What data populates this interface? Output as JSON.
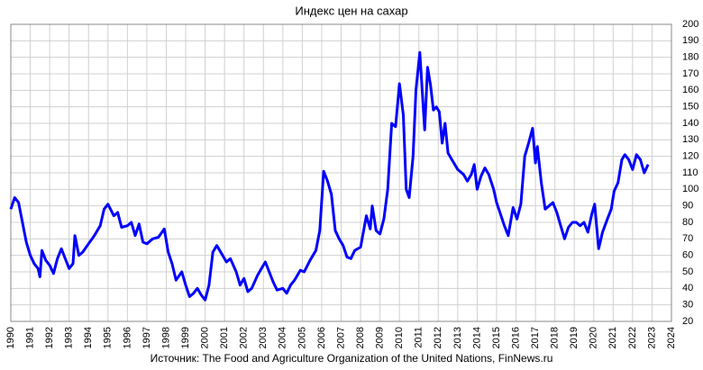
{
  "chart_data": {
    "type": "line",
    "title": "Индекс цен на сахар",
    "source": "Источник: The Food and Agriculture Organization of the United Nations, FinNews.ru",
    "xlim": [
      1990,
      2024
    ],
    "xticks": [
      1990,
      1991,
      1992,
      1993,
      1994,
      1995,
      1996,
      1997,
      1998,
      1999,
      2000,
      2001,
      2002,
      2003,
      2004,
      2005,
      2006,
      2007,
      2008,
      2009,
      2010,
      2011,
      2012,
      2013,
      2014,
      2015,
      2016,
      2017,
      2018,
      2019,
      2020,
      2021,
      2022,
      2023,
      2024
    ],
    "ylim": [
      20,
      200
    ],
    "yticks": [
      20,
      30,
      40,
      50,
      60,
      70,
      80,
      90,
      100,
      110,
      120,
      130,
      140,
      150,
      160,
      170,
      180,
      190,
      200
    ],
    "grid": true,
    "series": [
      {
        "color": "#0000ff",
        "x": [
          1990.0,
          1990.2,
          1990.4,
          1990.6,
          1990.8,
          1991.0,
          1991.2,
          1991.4,
          1991.5,
          1991.6,
          1991.8,
          1992.0,
          1992.2,
          1992.4,
          1992.6,
          1992.8,
          1993.0,
          1993.2,
          1993.3,
          1993.5,
          1993.7,
          1994.0,
          1994.3,
          1994.6,
          1994.8,
          1995.0,
          1995.3,
          1995.5,
          1995.7,
          1996.0,
          1996.2,
          1996.4,
          1996.6,
          1996.8,
          1997.0,
          1997.3,
          1997.6,
          1997.9,
          1998.1,
          1998.3,
          1998.5,
          1998.8,
          1999.0,
          1999.2,
          1999.4,
          1999.6,
          1999.8,
          2000.0,
          2000.2,
          2000.4,
          2000.6,
          2000.9,
          2001.1,
          2001.3,
          2001.6,
          2001.8,
          2002.0,
          2002.2,
          2002.4,
          2002.7,
          2002.9,
          2003.1,
          2003.3,
          2003.5,
          2003.7,
          2004.0,
          2004.2,
          2004.4,
          2004.6,
          2004.9,
          2005.1,
          2005.4,
          2005.7,
          2005.9,
          2006.1,
          2006.3,
          2006.5,
          2006.7,
          2006.9,
          2007.1,
          2007.3,
          2007.5,
          2007.7,
          2008.0,
          2008.3,
          2008.5,
          2008.6,
          2008.8,
          2009.0,
          2009.2,
          2009.4,
          2009.6,
          2009.8,
          2010.0,
          2010.2,
          2010.35,
          2010.5,
          2010.7,
          2010.85,
          2011.05,
          2011.2,
          2011.3,
          2011.45,
          2011.6,
          2011.75,
          2011.9,
          2012.05,
          2012.2,
          2012.35,
          2012.5,
          2012.75,
          2013.0,
          2013.3,
          2013.5,
          2013.7,
          2013.85,
          2014.0,
          2014.2,
          2014.4,
          2014.6,
          2014.85,
          2015.0,
          2015.2,
          2015.4,
          2015.6,
          2015.85,
          2016.05,
          2016.25,
          2016.45,
          2016.65,
          2016.85,
          2017.0,
          2017.1,
          2017.3,
          2017.5,
          2017.7,
          2017.9,
          2018.1,
          2018.3,
          2018.5,
          2018.7,
          2018.9,
          2019.1,
          2019.3,
          2019.5,
          2019.7,
          2019.9,
          2020.05,
          2020.25,
          2020.45,
          2020.7,
          2020.9,
          2021.05,
          2021.25,
          2021.45,
          2021.6,
          2021.8,
          2022.0,
          2022.2,
          2022.4,
          2022.6,
          2022.8
        ],
        "values": [
          88,
          95,
          92,
          80,
          68,
          60,
          55,
          52,
          47,
          63,
          57,
          54,
          49,
          58,
          64,
          58,
          52,
          55,
          72,
          60,
          62,
          67,
          72,
          78,
          88,
          91,
          84,
          86,
          77,
          78,
          80,
          72,
          79,
          68,
          67,
          70,
          71,
          76,
          62,
          55,
          45,
          50,
          42,
          35,
          37,
          40,
          36,
          33,
          42,
          62,
          66,
          60,
          56,
          58,
          50,
          42,
          46,
          38,
          40,
          48,
          52,
          56,
          50,
          44,
          39,
          40,
          37,
          42,
          45,
          51,
          50,
          57,
          63,
          75,
          111,
          105,
          97,
          75,
          70,
          66,
          59,
          58,
          63,
          65,
          84,
          76,
          90,
          75,
          73,
          82,
          100,
          140,
          138,
          164,
          145,
          100,
          95,
          120,
          160,
          183,
          155,
          136,
          174,
          163,
          148,
          150,
          147,
          128,
          140,
          122,
          117,
          112,
          109,
          105,
          109,
          115,
          100,
          108,
          113,
          109,
          100,
          92,
          85,
          78,
          72,
          89,
          82,
          91,
          120,
          128,
          137,
          116,
          126,
          104,
          88,
          90,
          92,
          86,
          78,
          70,
          77,
          80,
          80,
          78,
          80,
          74,
          85,
          91,
          64,
          74,
          82,
          88,
          99,
          104,
          118,
          121,
          118,
          112,
          121,
          118,
          110,
          115
        ]
      }
    ]
  }
}
